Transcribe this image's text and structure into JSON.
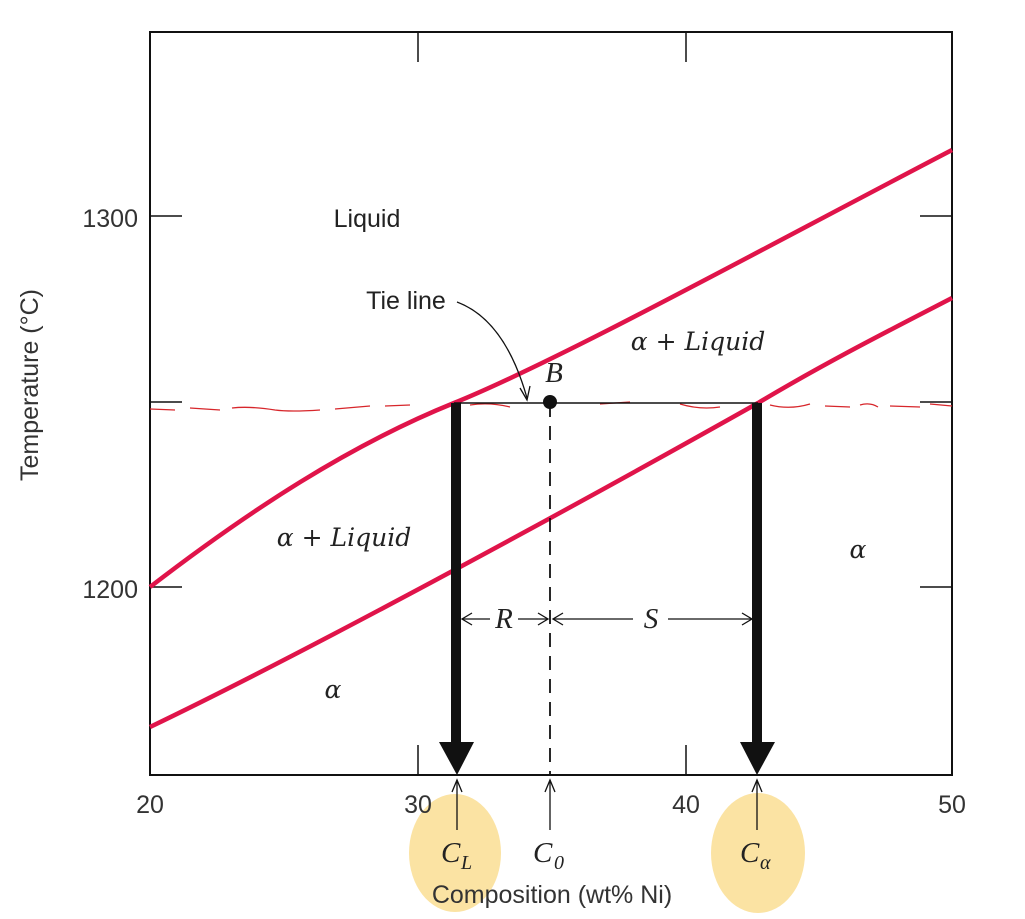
{
  "axes": {
    "ylabel": "Temperature (°C)",
    "xlabel": "Composition (wt% Ni)",
    "x_ticks": [
      "20",
      "30",
      "40",
      "50"
    ],
    "y_ticks": [
      "1300",
      "1200"
    ]
  },
  "regions": {
    "liquid": "Liquid",
    "alpha_liquid_upper": "α + Liquid",
    "alpha_liquid_left": "α + Liquid",
    "alpha_lower": "α",
    "alpha_right": "α"
  },
  "annotations": {
    "tie_line": "Tie line",
    "point_b": "B",
    "r": "R",
    "s": "S",
    "c_main": "C",
    "c_l_sub": "L",
    "c_0_sub": "0",
    "c_alpha_sub": "α"
  },
  "chart_data": {
    "type": "line",
    "xlabel": "Composition (wt% Ni)",
    "ylabel": "Temperature (°C)",
    "xlim": [
      20,
      50
    ],
    "ylim": [
      1150,
      1350
    ],
    "series": [
      {
        "x": [
          20,
          25,
          30,
          35,
          40,
          45,
          50
        ],
        "y": [
          1200,
          1227,
          1250,
          1268,
          1282,
          1298,
          1318
        ]
      },
      {
        "x": [
          20,
          25,
          30,
          35,
          40,
          45,
          50
        ],
        "y": [
          1162,
          1184,
          1204,
          1224,
          1240,
          1258,
          1275
        ]
      }
    ],
    "tie_line": {
      "y": 1250,
      "x_start": 31.5,
      "x_end": 42.5
    },
    "point_b": {
      "x": 35,
      "y": 1250
    },
    "compositions": {
      "C_L": 31.5,
      "C_0": 35,
      "C_alpha": 42.5
    },
    "colors": {
      "curve": "#e0144a",
      "highlight": "#fbe3a3"
    }
  }
}
